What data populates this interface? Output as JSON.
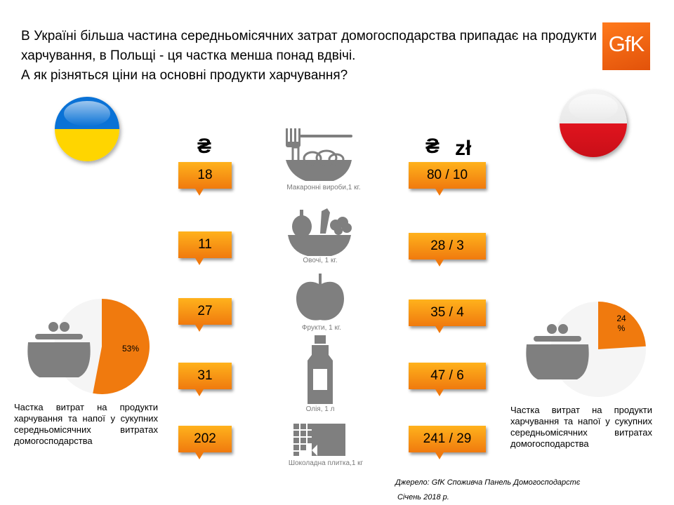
{
  "header": {
    "title": "В Україні більша частина середньомісячних затрат домогосподарства припадає на продукти харчування, в Польщі - ця частка менша понад вдвічі.",
    "subtitle": "А як різняться ціни на основні продукти харчування?",
    "logo_text": "GfK"
  },
  "currencies": {
    "ukraine": "₴",
    "poland_uah": "₴",
    "poland_pln": "zł"
  },
  "products": [
    {
      "label": "Макаронні вироби,1 кг.",
      "icon": "pasta-icon",
      "ukraine": "18",
      "poland": "80 / 10"
    },
    {
      "label": "Овочі, 1 кг.",
      "icon": "vegetables-icon",
      "ukraine": "11",
      "poland": "28 / 3"
    },
    {
      "label": "Фрукти, 1 кг.",
      "icon": "apple-icon",
      "ukraine": "27",
      "poland": "35 / 4"
    },
    {
      "label": "Олія, 1 л",
      "icon": "oil-bottle-icon",
      "ukraine": "31",
      "poland": "47 / 6"
    },
    {
      "label": "Шоколадна плитка,1 кг",
      "icon": "chocolate-icon",
      "ukraine": "202",
      "poland": "241 / 29"
    }
  ],
  "shares": {
    "ukraine": {
      "value": 53,
      "label": "53%",
      "description": "Частка витрат на продукти харчування та напої у сукупних середньомісячних витратах домогосподарства"
    },
    "poland": {
      "value": 24,
      "label": "24 %",
      "description": "Частка витрат на продукти харчування та напої у сукупних середньомісячних витратах домогосподарства"
    }
  },
  "source": {
    "line1": "Джерело: GfK  Споживча Панель Домогосподарстє",
    "line2": "Січень 2018 р."
  },
  "colors": {
    "accent": "#f07a0e",
    "tag_top": "#ffb21c",
    "icon_gray": "#7f7f7f",
    "pie_bg": "#f5f5f5"
  }
}
